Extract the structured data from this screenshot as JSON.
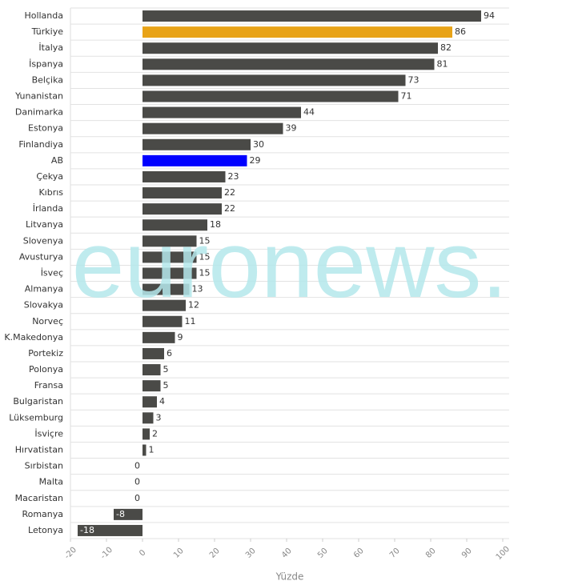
{
  "chart_data": {
    "type": "barh",
    "watermark": "euronews.",
    "x_label": "Yüzde",
    "categories": [
      "Hollanda",
      "Türkiye",
      "İtalya",
      "İspanya",
      "Belçika",
      "Yunanistan",
      "Danimarka",
      "Estonya",
      "Finlandiya",
      "AB",
      "Çekya",
      "Kıbrıs",
      "İrlanda",
      "Litvanya",
      "Slovenya",
      "Avusturya",
      "İsveç",
      "Almanya",
      "Slovakya",
      "Norveç",
      "K.Makedonya",
      "Portekiz",
      "Polonya",
      "Fransa",
      "Bulgaristan",
      "Lüksemburg",
      "İsviçre",
      "Hırvatistan",
      "Sırbistan",
      "Malta",
      "Macaristan",
      "Romanya",
      "Letonya"
    ],
    "values": [
      94,
      86,
      82,
      81,
      73,
      71,
      44,
      39,
      30,
      29,
      23,
      22,
      22,
      18,
      15,
      15,
      15,
      13,
      12,
      11,
      9,
      6,
      5,
      5,
      4,
      3,
      2,
      1,
      0,
      0,
      0,
      -8,
      -18
    ],
    "color": "#4a4a47",
    "colors": [
      "#4a4a47",
      "#e8a317",
      "#4a4a47",
      "#4a4a47",
      "#4a4a47",
      "#4a4a47",
      "#4a4a47",
      "#4a4a47",
      "#4a4a47",
      "#0000ff",
      "#4a4a47",
      "#4a4a47",
      "#4a4a47",
      "#4a4a47",
      "#4a4a47",
      "#4a4a47",
      "#4a4a47",
      "#4a4a47",
      "#4a4a47",
      "#4a4a47",
      "#4a4a47",
      "#4a4a47",
      "#4a4a47",
      "#4a4a47",
      "#4a4a47",
      "#4a4a47",
      "#4a4a47",
      "#4a4a47",
      "#4a4a47",
      "#4a4a47",
      "#4a4a47",
      "#4a4a47",
      "#4a4a47"
    ],
    "xlim": [
      -20,
      100
    ],
    "xticks": [
      -20,
      -10,
      0,
      10,
      20,
      30,
      40,
      50,
      60,
      70,
      80,
      90,
      100
    ]
  }
}
